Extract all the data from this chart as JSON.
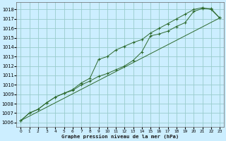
{
  "title": "Graphe pression niveau de la mer (hPa)",
  "bg_color": "#cceeff",
  "grid_color": "#99cccc",
  "line_color": "#2d6a2d",
  "xlim": [
    -0.5,
    23.5
  ],
  "ylim": [
    1005.5,
    1018.8
  ],
  "xticks": [
    0,
    1,
    2,
    3,
    4,
    5,
    6,
    7,
    8,
    9,
    10,
    11,
    12,
    13,
    14,
    15,
    16,
    17,
    18,
    19,
    20,
    21,
    22,
    23
  ],
  "yticks": [
    1006,
    1007,
    1008,
    1009,
    1010,
    1011,
    1012,
    1013,
    1014,
    1015,
    1016,
    1017,
    1018
  ],
  "series1_x": [
    0,
    1,
    2,
    3,
    4,
    5,
    6,
    7,
    8,
    9,
    10,
    11,
    12,
    13,
    14,
    15,
    16,
    17,
    18,
    19,
    20,
    21,
    22,
    23
  ],
  "series1_y": [
    1006.2,
    1007.0,
    1007.4,
    1008.1,
    1008.7,
    1009.1,
    1009.4,
    1010.0,
    1010.4,
    1010.9,
    1011.2,
    1011.6,
    1012.0,
    1012.6,
    1013.5,
    1015.2,
    1015.4,
    1015.7,
    1016.2,
    1016.6,
    1017.8,
    1018.1,
    1018.1,
    1017.1
  ],
  "series2_x": [
    0,
    1,
    2,
    3,
    4,
    5,
    6,
    7,
    8,
    9,
    10,
    11,
    12,
    13,
    14,
    15,
    16,
    17,
    18,
    19,
    20,
    21,
    22,
    23
  ],
  "series2_y": [
    1006.2,
    1007.0,
    1007.4,
    1008.1,
    1008.7,
    1009.1,
    1009.5,
    1010.2,
    1010.7,
    1012.7,
    1013.0,
    1013.7,
    1014.1,
    1014.5,
    1014.8,
    1015.5,
    1016.0,
    1016.5,
    1017.0,
    1017.5,
    1018.0,
    1018.2,
    1018.0,
    1017.1
  ],
  "trend_x": [
    0,
    23
  ],
  "trend_y": [
    1006.2,
    1017.1
  ]
}
